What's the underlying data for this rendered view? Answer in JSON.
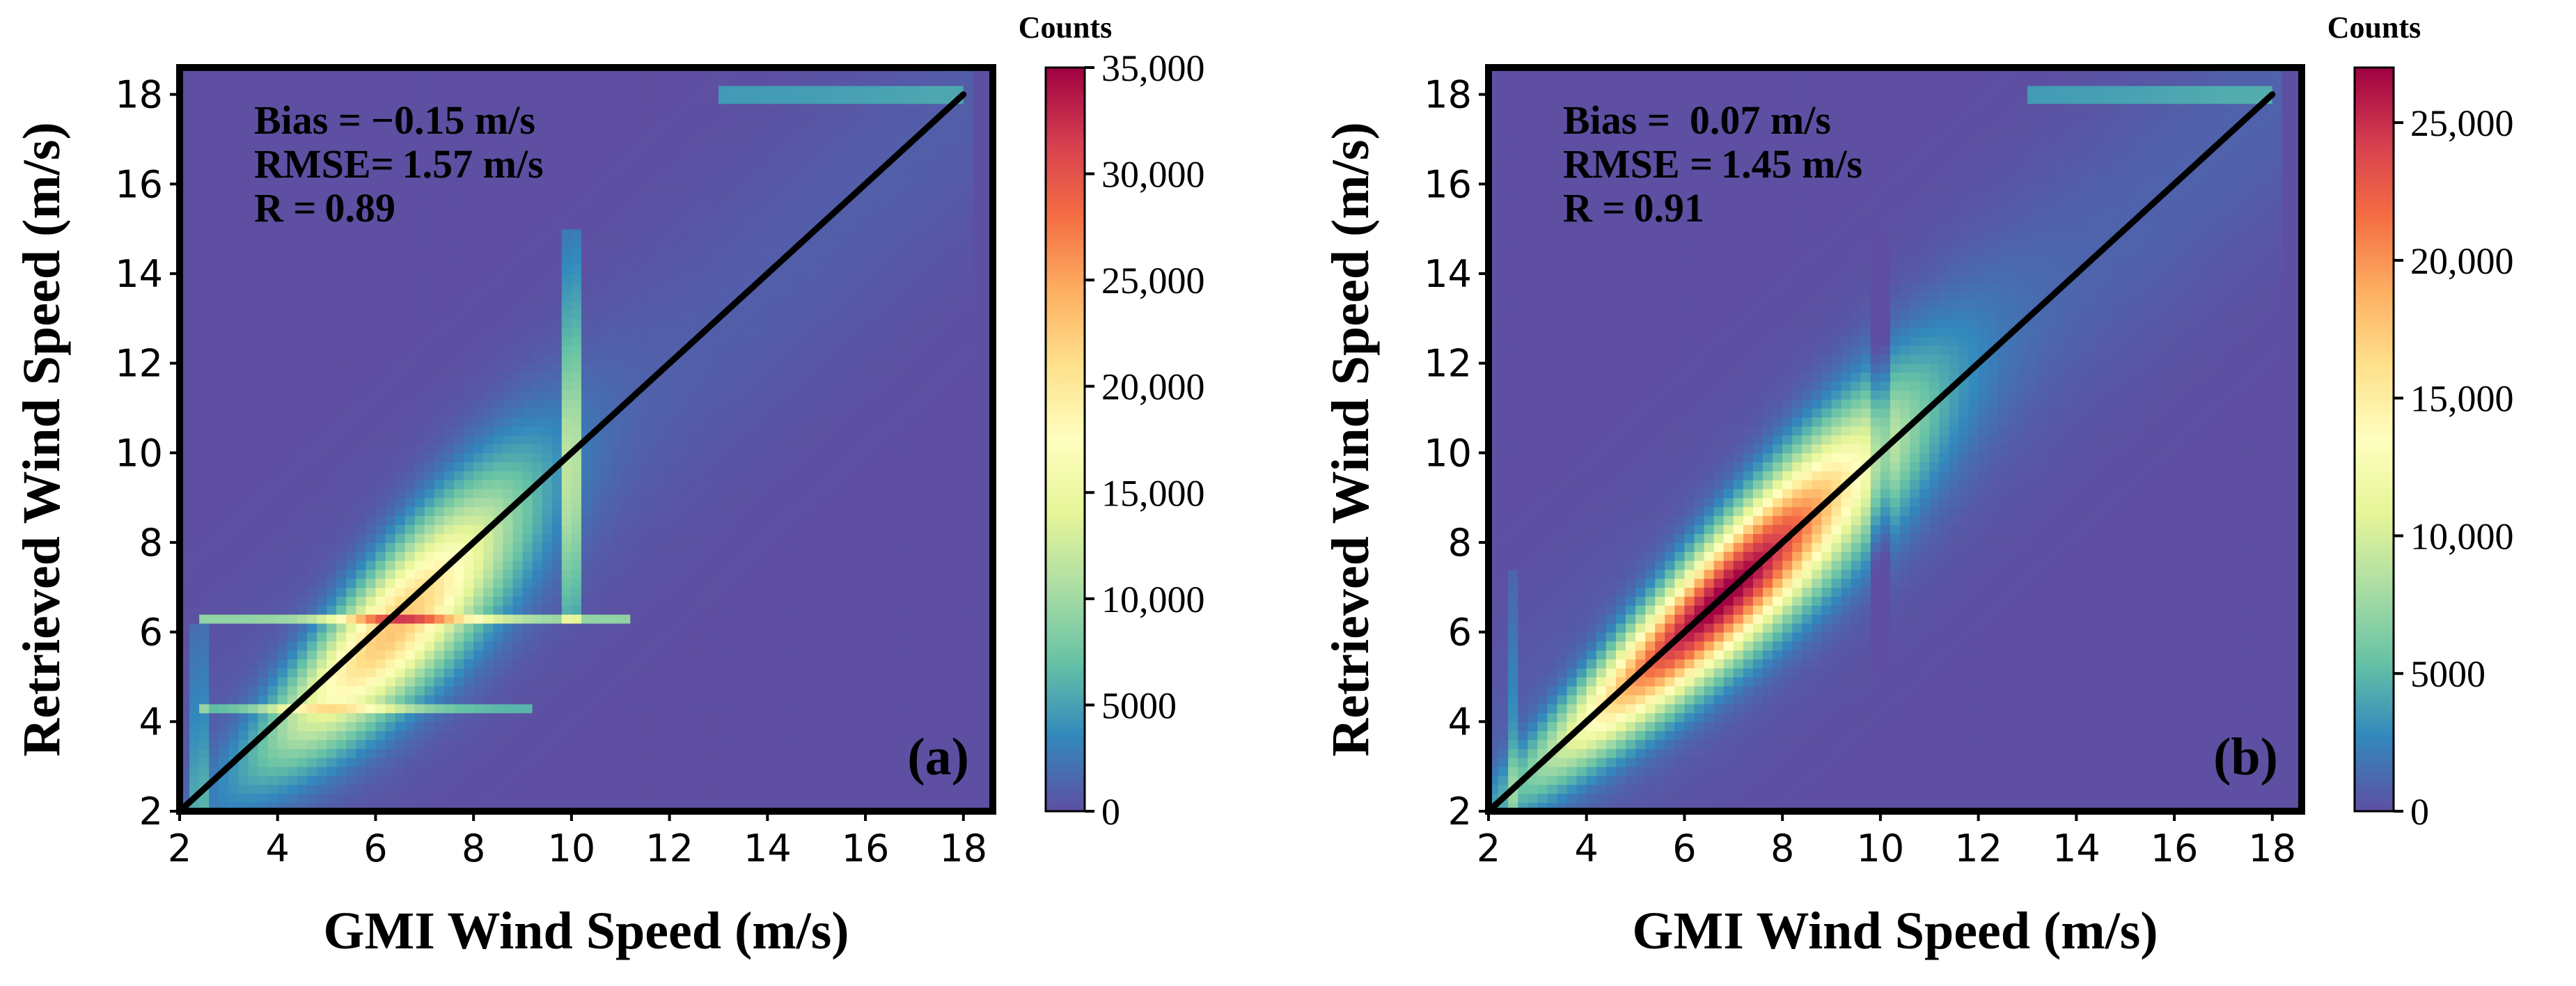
{
  "chart_data": [
    {
      "type": "heatmap",
      "panel_label": "(a)",
      "xlabel": "GMI Wind Speed (m/s)",
      "ylabel": "Retrieved Wind Speed (m/s)",
      "xlim": [
        2,
        18.6
      ],
      "ylim": [
        2,
        18.6
      ],
      "xticks": [
        2,
        4,
        6,
        8,
        10,
        12,
        14,
        16,
        18
      ],
      "yticks": [
        2,
        4,
        6,
        8,
        10,
        12,
        14,
        16,
        18
      ],
      "one_to_one_line": {
        "from": [
          2,
          2
        ],
        "to": [
          18,
          18
        ]
      },
      "stats": [
        {
          "label": "Bias =",
          "value": "−0.15 m/s"
        },
        {
          "label": "RMSE=",
          "value": "1.57 m/s"
        },
        {
          "label": "R =",
          "value": "0.89"
        }
      ],
      "density_model": {
        "center_offset": -0.3,
        "width_base": 0.7,
        "width_slope": 0.1,
        "peak": 22000,
        "peak_decay": 0.17,
        "peak_center": 6.4,
        "hot_rows": [
          {
            "y": 6.3,
            "xmin": 2.4,
            "xmax": 11.2,
            "boost": 9000
          },
          {
            "y": 4.3,
            "xmin": 2.4,
            "xmax": 9.2,
            "boost": 6000
          },
          {
            "y": 18.0,
            "xmin": 13.0,
            "xmax": 18.0,
            "boost": 4500
          }
        ],
        "hot_columns": [
          {
            "x": 10.0,
            "ymin": 6.3,
            "ymax": 15.0,
            "boost": 8000
          },
          {
            "x": 2.45,
            "ymin": 2.0,
            "ymax": 6.3,
            "boost": 3500
          }
        ]
      },
      "colorbar": {
        "title": "Counts",
        "min": 0,
        "max": 35000,
        "ticks": [
          0,
          5000,
          10000,
          15000,
          20000,
          25000,
          30000,
          35000
        ],
        "tick_labels": [
          "0",
          "5000",
          "10,000",
          "15,000",
          "20,000",
          "25,000",
          "30,000",
          "35,000"
        ]
      }
    },
    {
      "type": "heatmap",
      "panel_label": "(b)",
      "xlabel": "GMI Wind Speed (m/s)",
      "ylabel": "Retrieved Wind Speed (m/s)",
      "xlim": [
        2,
        18.6
      ],
      "ylim": [
        2,
        18.6
      ],
      "xticks": [
        2,
        4,
        6,
        8,
        10,
        12,
        14,
        16,
        18
      ],
      "yticks": [
        2,
        4,
        6,
        8,
        10,
        12,
        14,
        16,
        18
      ],
      "one_to_one_line": {
        "from": [
          2,
          2
        ],
        "to": [
          18,
          18
        ]
      },
      "stats": [
        {
          "label": "Bias =",
          "value": "0.07 m/s"
        },
        {
          "label": "RMSE =",
          "value": "1.45 m/s"
        },
        {
          "label": "R =",
          "value": "0.91"
        }
      ],
      "density_model": {
        "center_offset": 0.0,
        "width_base": 0.55,
        "width_slope": 0.09,
        "peak": 26500,
        "peak_decay": 0.1,
        "peak_center": 6.8,
        "hot_rows": [
          {
            "y": 18.0,
            "xmin": 13.0,
            "xmax": 18.0,
            "boost": 3500
          }
        ],
        "hot_columns": [
          {
            "x": 10.0,
            "ymin": 5.0,
            "ymax": 15.0,
            "boost": -2500
          },
          {
            "x": 2.5,
            "ymin": 2.0,
            "ymax": 7.5,
            "boost": 2500
          }
        ]
      },
      "colorbar": {
        "title": "Counts",
        "min": 0,
        "max": 27000,
        "ticks": [
          0,
          5000,
          10000,
          15000,
          20000,
          25000
        ],
        "tick_labels": [
          "0",
          "5000",
          "10,000",
          "15,000",
          "20,000",
          "25,000"
        ]
      }
    }
  ],
  "colormap": [
    "#5e4fa2",
    "#3288bd",
    "#66c2a5",
    "#abdda4",
    "#e6f598",
    "#ffffbf",
    "#fee08b",
    "#fdae61",
    "#f46d43",
    "#d53e4f",
    "#9e0142"
  ]
}
